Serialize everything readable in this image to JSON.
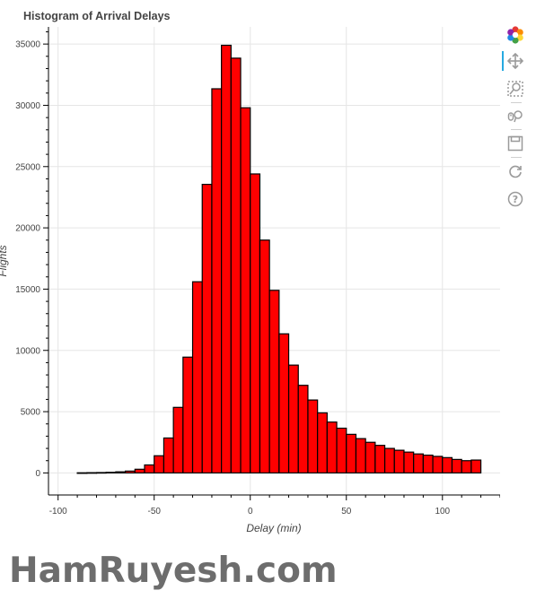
{
  "chart_data": {
    "type": "bar",
    "title": "Histogram of Arrival Delays",
    "xlabel": "Delay (min)",
    "ylabel": "Flights",
    "xlim": [
      -105,
      130
    ],
    "ylim": [
      -1800,
      36400
    ],
    "xticks": [
      -100,
      -50,
      0,
      50,
      100
    ],
    "yticks": [
      0,
      5000,
      10000,
      15000,
      20000,
      25000,
      30000,
      35000
    ],
    "grid": true,
    "bar_color": "#ff0000",
    "edge_color": "#000000",
    "bin_width": 5,
    "bin_starts": [
      -90,
      -85,
      -80,
      -75,
      -70,
      -65,
      -60,
      -55,
      -50,
      -45,
      -40,
      -35,
      -30,
      -25,
      -20,
      -15,
      -10,
      -5,
      0,
      5,
      10,
      15,
      20,
      25,
      30,
      35,
      40,
      45,
      50,
      55,
      60,
      65,
      70,
      75,
      80,
      85,
      90,
      95,
      100,
      105,
      110,
      115
    ],
    "values": [
      10,
      20,
      30,
      50,
      90,
      150,
      300,
      650,
      1400,
      2850,
      5350,
      9450,
      15600,
      23550,
      31350,
      34900,
      33850,
      29800,
      24400,
      19000,
      14900,
      11350,
      8800,
      7150,
      5950,
      4900,
      4150,
      3650,
      3150,
      2800,
      2500,
      2250,
      2000,
      1850,
      1700,
      1550,
      1450,
      1350,
      1250,
      1100,
      1000,
      1050
    ]
  },
  "toolbar": {
    "tools": [
      "bokeh-logo-icon",
      "pan-icon",
      "box-zoom-icon",
      "wheel-zoom-icon",
      "save-icon",
      "reset-icon",
      "help-icon"
    ],
    "active": "pan-icon"
  },
  "watermark": "HamRuyesh.com"
}
